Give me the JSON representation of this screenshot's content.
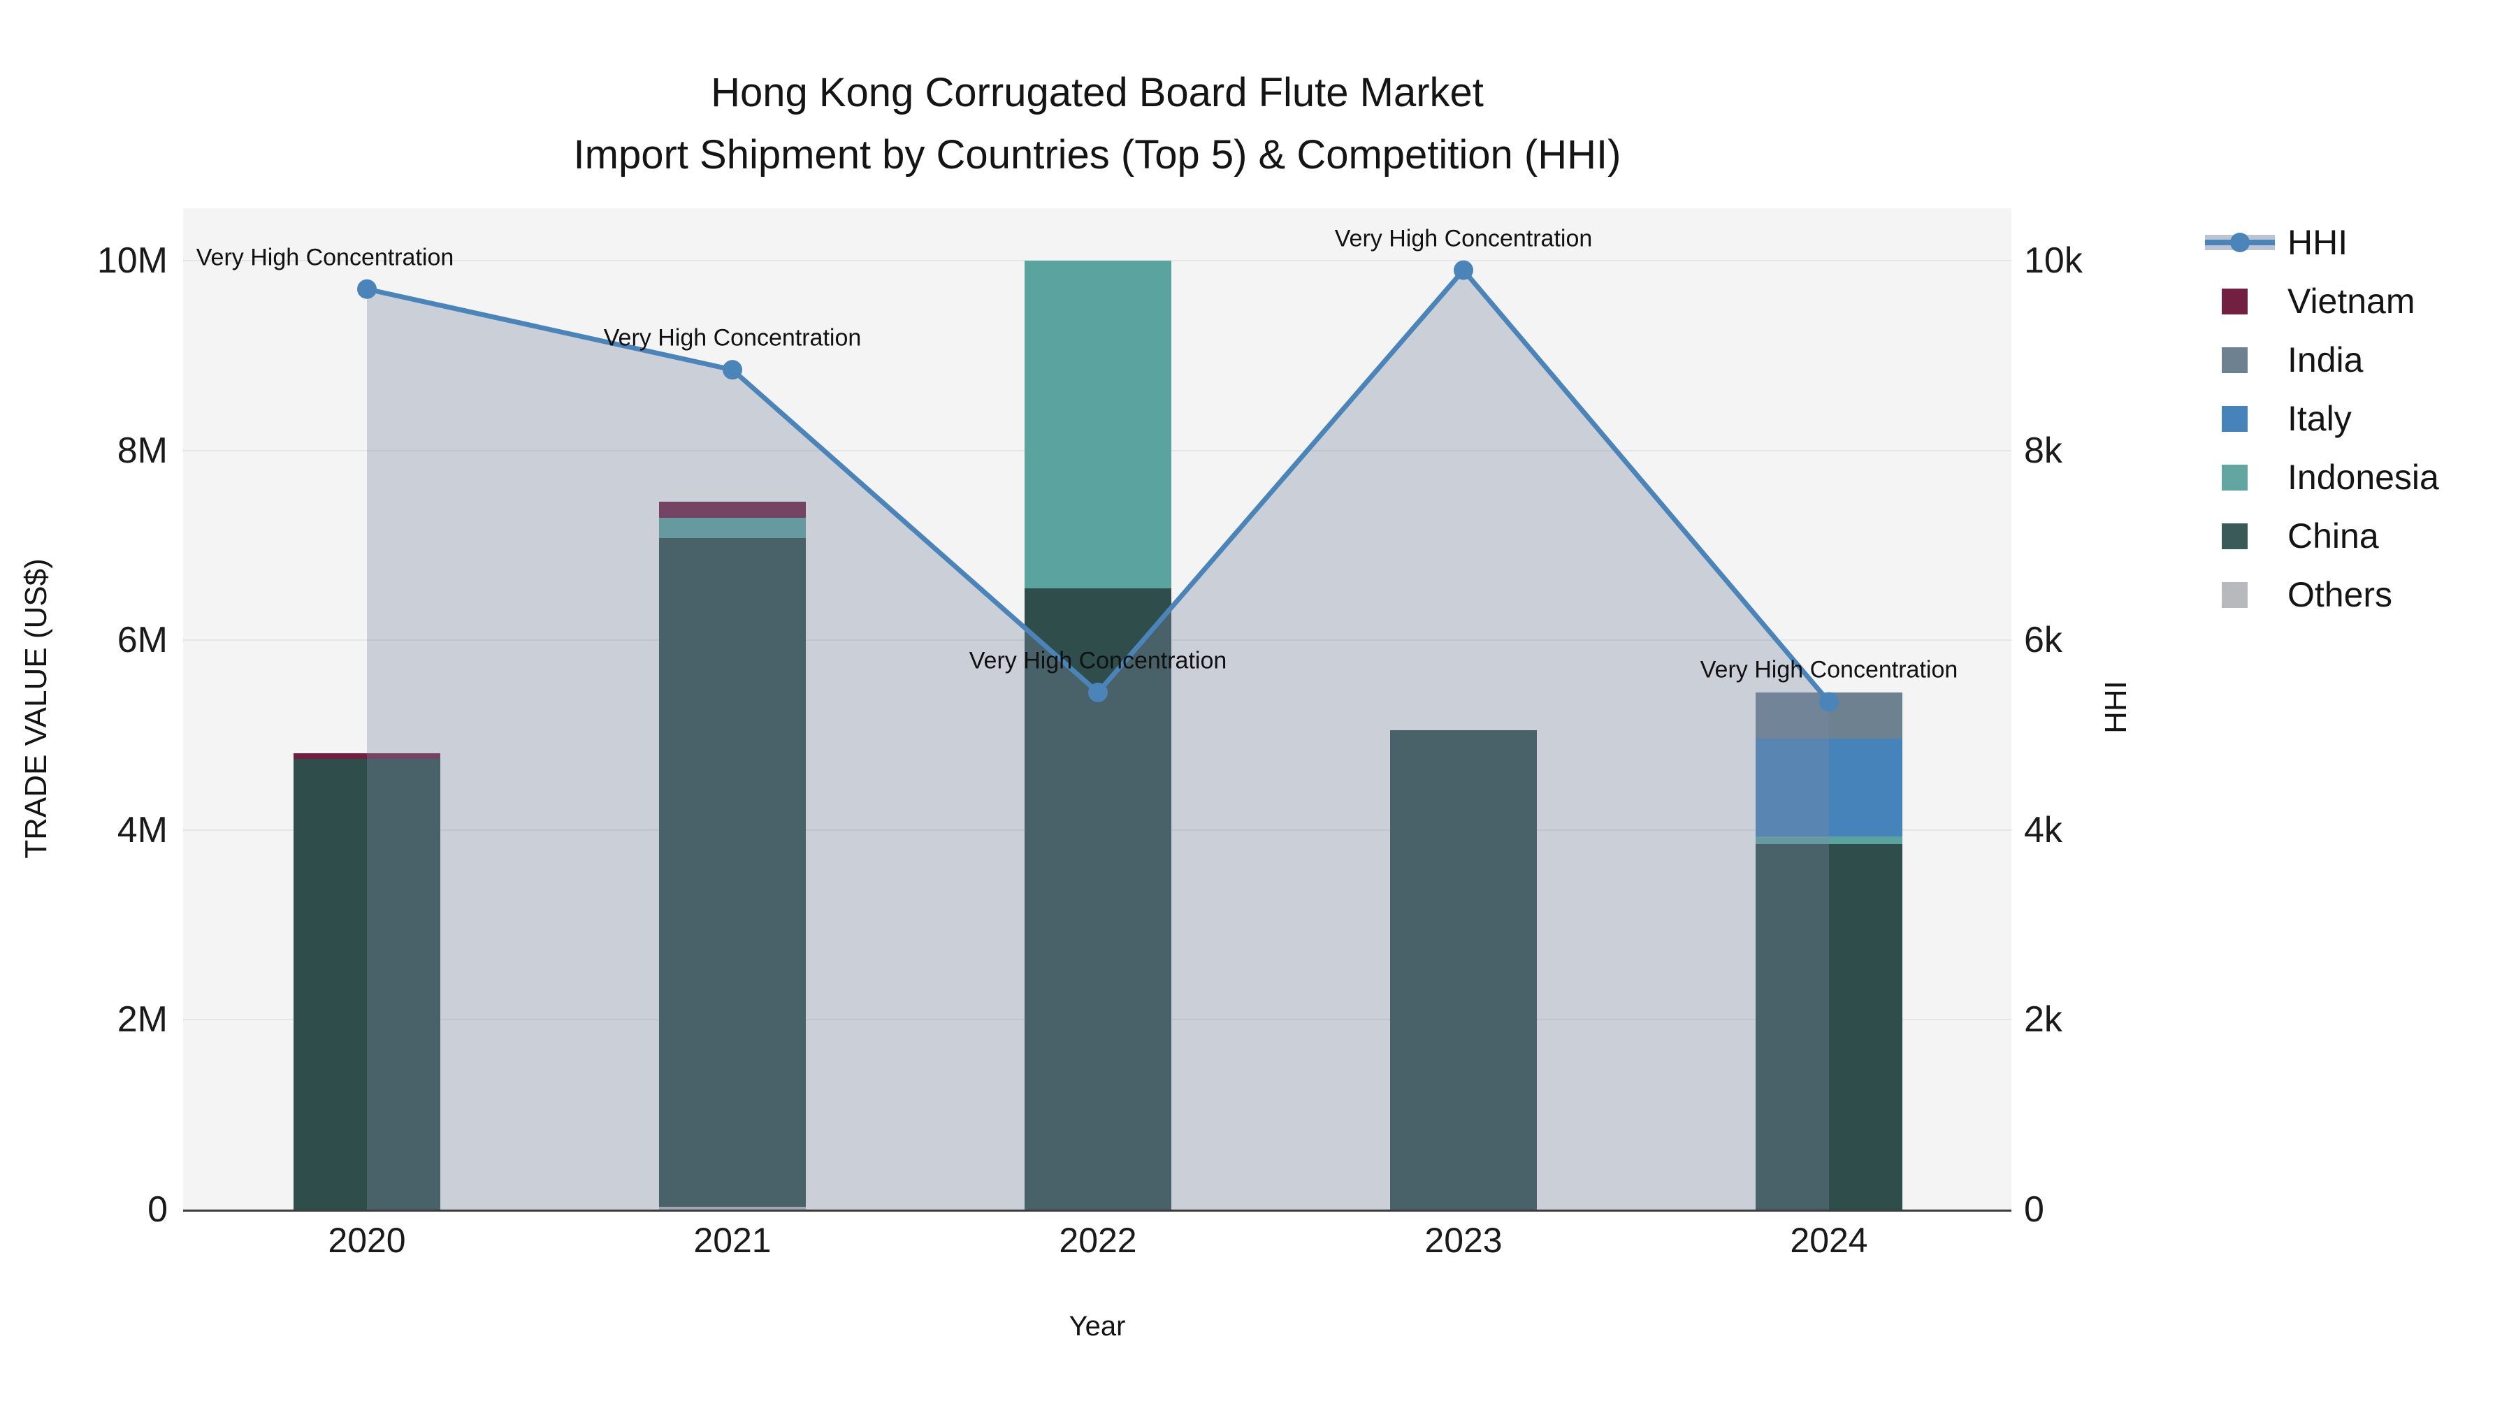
{
  "title": {
    "line1": "Hong Kong Corrugated Board Flute Market",
    "line2": "Import Shipment by Countries (Top 5) & Competition (HHI)"
  },
  "chart_data": {
    "type": "bar+line",
    "bar_mode": "stacked",
    "bar_unit": "million US$",
    "categories": [
      "2020",
      "2021",
      "2022",
      "2023",
      "2024"
    ],
    "series": [
      {
        "name": "Others",
        "color": "#b7b9bc",
        "values": [
          0,
          0.03,
          0,
          0,
          0
        ]
      },
      {
        "name": "China",
        "color": "#2e4d4b",
        "values": [
          4.75,
          7.05,
          6.55,
          5.05,
          3.85
        ]
      },
      {
        "name": "Indonesia",
        "color": "#5ba39e",
        "values": [
          0,
          0.21,
          3.45,
          0,
          0.08
        ]
      },
      {
        "name": "Italy",
        "color": "#4583ba",
        "values": [
          0,
          0,
          0,
          0,
          1.03
        ]
      },
      {
        "name": "India",
        "color": "#6e8191",
        "values": [
          0,
          0,
          0,
          0,
          0.49
        ]
      },
      {
        "name": "Vietnam",
        "color": "#722042",
        "values": [
          0.06,
          0.17,
          0,
          0,
          0
        ]
      }
    ],
    "line_series": {
      "name": "HHI",
      "axis": "right",
      "color": "#4b84b8",
      "fill_color": "rgba(124,138,164,0.35)",
      "values": [
        9700,
        8850,
        5450,
        9900,
        5350
      ]
    },
    "x_axis": {
      "title": "Year",
      "ticks": [
        "2020",
        "2021",
        "2022",
        "2023",
        "2024"
      ]
    },
    "y_left": {
      "title": "TRADE VALUE (US$)",
      "ticks": [
        "0",
        "2M",
        "4M",
        "6M",
        "8M",
        "10M"
      ],
      "tick_values": [
        0,
        2,
        4,
        6,
        8,
        10
      ],
      "range_max": 10.55
    },
    "y_right": {
      "title": "HHI",
      "ticks": [
        "0",
        "2k",
        "4k",
        "6k",
        "8k",
        "10k"
      ],
      "tick_values": [
        0,
        2,
        4,
        6,
        8,
        10
      ]
    },
    "annotations": [
      {
        "x": "2020",
        "text": "Very High Concentration"
      },
      {
        "x": "2021",
        "text": "Very High Concentration"
      },
      {
        "x": "2022",
        "text": "Very High Concentration"
      },
      {
        "x": "2023",
        "text": "Very High Concentration"
      },
      {
        "x": "2024",
        "text": "Very High Concentration"
      }
    ],
    "legend_position": "right"
  },
  "legend": {
    "items": [
      {
        "label": "HHI",
        "type": "line",
        "color": "#4b84b8"
      },
      {
        "label": "Vietnam",
        "type": "swatch",
        "color": "#722042"
      },
      {
        "label": "India",
        "type": "swatch",
        "color": "#6e8191"
      },
      {
        "label": "Italy",
        "type": "swatch",
        "color": "#4583ba"
      },
      {
        "label": "Indonesia",
        "type": "swatch",
        "color": "#62a5a1"
      },
      {
        "label": "China",
        "type": "swatch",
        "color": "#3a5a58"
      },
      {
        "label": "Others",
        "type": "swatch",
        "color": "#b7b9bc"
      }
    ]
  }
}
